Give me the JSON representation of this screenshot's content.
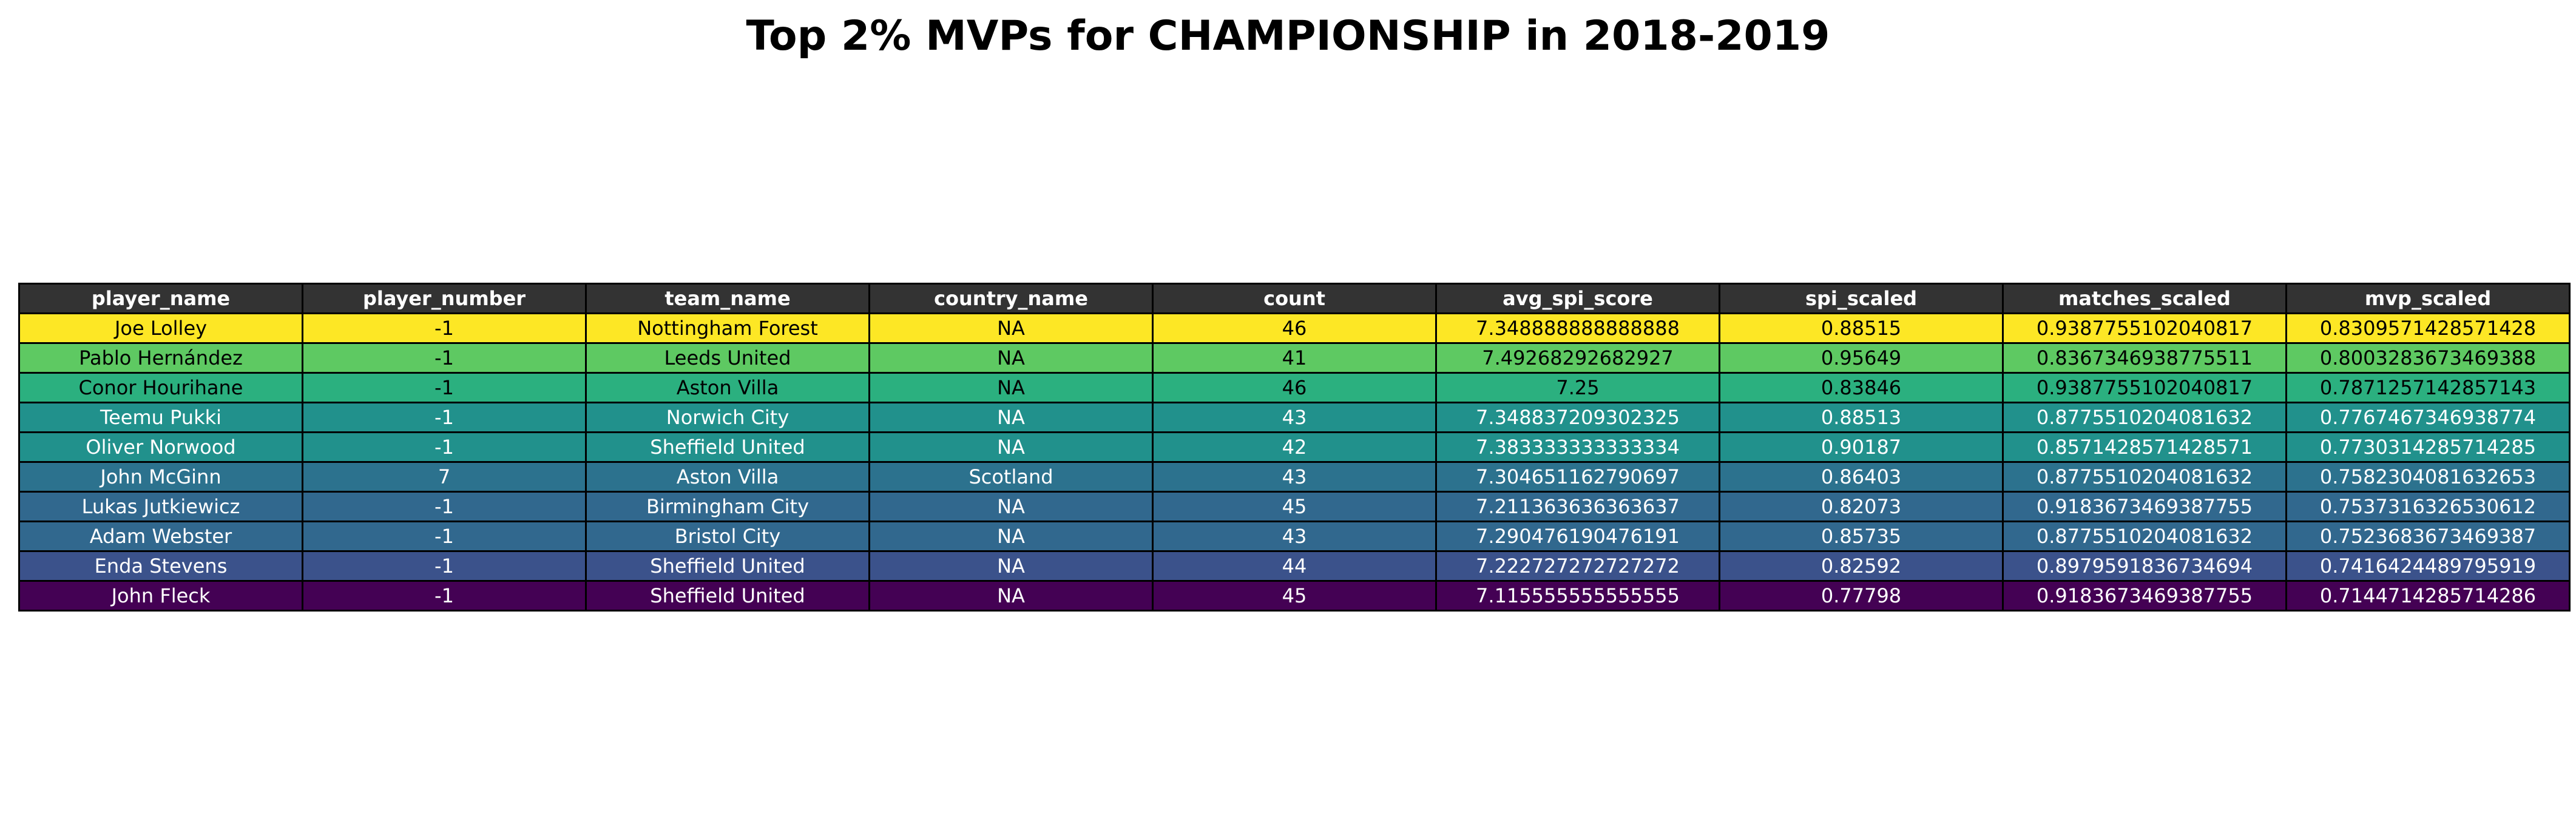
{
  "title": "Top 2% MVPs for CHAMPIONSHIP in 2018-2019",
  "chart_data": {
    "type": "table",
    "title": "Top 2% MVPs for CHAMPIONSHIP in 2018-2019",
    "columns": [
      "player_name",
      "player_number",
      "team_name",
      "country_name",
      "count",
      "avg_spi_score",
      "spi_scaled",
      "matches_scaled",
      "mvp_scaled"
    ],
    "rows": [
      [
        "Joe Lolley",
        "-1",
        "Nottingham Forest",
        "NA",
        "46",
        "7.348888888888888",
        "0.88515",
        "0.9387755102040817",
        "0.8309571428571428"
      ],
      [
        "Pablo Hernández",
        "-1",
        "Leeds United",
        "NA",
        "41",
        "7.49268292682927",
        "0.95649",
        "0.8367346938775511",
        "0.8003283673469388"
      ],
      [
        "Conor Hourihane",
        "-1",
        "Aston Villa",
        "NA",
        "46",
        "7.25",
        "0.83846",
        "0.9387755102040817",
        "0.7871257142857143"
      ],
      [
        "Teemu Pukki",
        "-1",
        "Norwich City",
        "NA",
        "43",
        "7.348837209302325",
        "0.88513",
        "0.8775510204081632",
        "0.7767467346938774"
      ],
      [
        "Oliver Norwood",
        "-1",
        "Sheffield United",
        "NA",
        "42",
        "7.383333333333334",
        "0.90187",
        "0.8571428571428571",
        "0.7730314285714285"
      ],
      [
        "John McGinn",
        "7",
        "Aston Villa",
        "Scotland",
        "43",
        "7.304651162790697",
        "0.86403",
        "0.8775510204081632",
        "0.7582304081632653"
      ],
      [
        "Lukas Jutkiewicz",
        "-1",
        "Birmingham City",
        "NA",
        "45",
        "7.211363636363637",
        "0.82073",
        "0.9183673469387755",
        "0.7537316326530612"
      ],
      [
        "Adam Webster",
        "-1",
        "Bristol City",
        "NA",
        "43",
        "7.290476190476191",
        "0.85735",
        "0.8775510204081632",
        "0.7523683673469387"
      ],
      [
        "Enda Stevens",
        "-1",
        "Sheffield United",
        "NA",
        "44",
        "7.222727272727272",
        "0.82592",
        "0.8979591836734694",
        "0.7416424489795919"
      ],
      [
        "John Fleck",
        "-1",
        "Sheffield United",
        "NA",
        "45",
        "7.115555555555555",
        "0.77798",
        "0.9183673469387755",
        "0.7144714285714286"
      ]
    ],
    "header_color": "#333333",
    "row_colors": [
      "#fde725",
      "#5ec962",
      "#2bb07f",
      "#21918c",
      "#21918c",
      "#2c728e",
      "#31688e",
      "#31688e",
      "#3b528b",
      "#440154"
    ],
    "row_text_colors": [
      "#000000",
      "#000000",
      "#000000",
      "#ffffff",
      "#ffffff",
      "#ffffff",
      "#ffffff",
      "#ffffff",
      "#ffffff",
      "#ffffff"
    ]
  }
}
